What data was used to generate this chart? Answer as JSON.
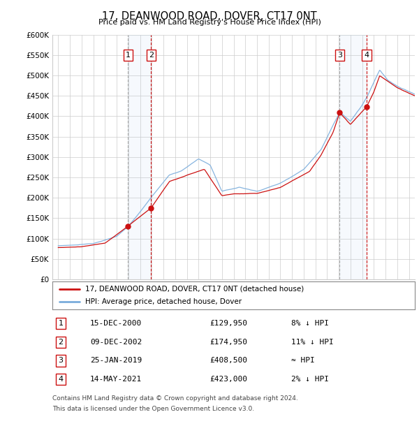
{
  "title": "17, DEANWOOD ROAD, DOVER, CT17 0NT",
  "subtitle": "Price paid vs. HM Land Registry's House Price Index (HPI)",
  "ylim": [
    0,
    600000
  ],
  "yticks": [
    0,
    50000,
    100000,
    150000,
    200000,
    250000,
    300000,
    350000,
    400000,
    450000,
    500000,
    550000,
    600000
  ],
  "xlim_start": 1994.5,
  "xlim_end": 2025.5,
  "bg_color": "#ffffff",
  "grid_color": "#cccccc",
  "hpi_line_color": "#7aaddc",
  "price_line_color": "#cc1111",
  "transactions": [
    {
      "num": 1,
      "date": "15-DEC-2000",
      "price": 129950,
      "x_year": 2000.96,
      "pct": "8% ↓ HPI",
      "line_style": "--",
      "line_color": "#aaaaaa"
    },
    {
      "num": 2,
      "date": "09-DEC-2002",
      "price": 174950,
      "x_year": 2002.94,
      "pct": "11% ↓ HPI",
      "line_style": "--",
      "line_color": "#cc1111"
    },
    {
      "num": 3,
      "date": "25-JAN-2019",
      "price": 408500,
      "x_year": 2019.07,
      "pct": "≈ HPI",
      "line_style": "--",
      "line_color": "#aaaaaa"
    },
    {
      "num": 4,
      "date": "14-MAY-2021",
      "price": 423000,
      "x_year": 2021.37,
      "pct": "2% ↓ HPI",
      "line_style": "--",
      "line_color": "#cc1111"
    }
  ],
  "legend_line1": "17, DEANWOOD ROAD, DOVER, CT17 0NT (detached house)",
  "legend_line2": "HPI: Average price, detached house, Dover",
  "footnote1": "Contains HM Land Registry data © Crown copyright and database right 2024.",
  "footnote2": "This data is licensed under the Open Government Licence v3.0."
}
